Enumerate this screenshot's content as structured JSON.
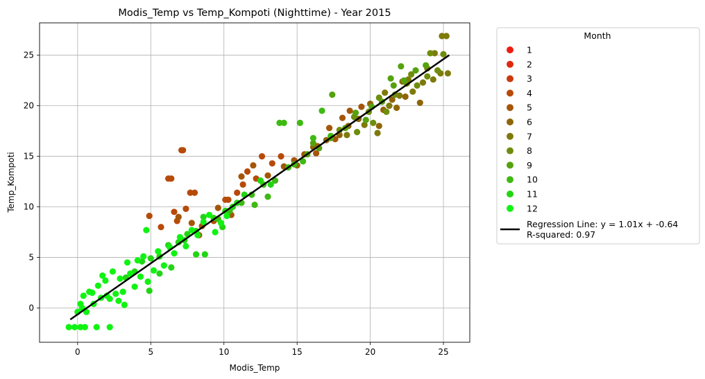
{
  "chart_data": {
    "type": "scatter",
    "title": "Modis_Temp vs Temp_Kompoti (Nighttime) - Year 2015",
    "xlabel": "Modis_Temp",
    "ylabel": "Temp_Kompoti",
    "xlim": [
      -2.6,
      26.8
    ],
    "ylim": [
      -3.4,
      28.2
    ],
    "xticks": [
      "0",
      "5",
      "10",
      "15",
      "20",
      "25"
    ],
    "xtick_values": [
      0,
      5,
      10,
      15,
      20,
      25
    ],
    "yticks": [
      "0",
      "5",
      "10",
      "15",
      "20",
      "25"
    ],
    "ytick_values": [
      0,
      5,
      10,
      15,
      20,
      25
    ],
    "grid": true,
    "legend": {
      "title": "Month",
      "placement": "outside-right",
      "entries": [
        "1",
        "2",
        "3",
        "4",
        "5",
        "6",
        "7",
        "8",
        "9",
        "10",
        "11",
        "12"
      ],
      "regression_line_label": "Regression Line: y = 1.01x + -0.64",
      "r_squared_label": "R-squared: 0.97"
    },
    "regression": {
      "slope": 1.01,
      "intercept": -0.64,
      "r_squared": 0.97,
      "x_range": [
        -0.5,
        25.4
      ]
    },
    "series": [
      {
        "name": "1",
        "color": "#ee1c12",
        "points": []
      },
      {
        "name": "2",
        "color": "#dd2a0e",
        "points": []
      },
      {
        "name": "3",
        "color": "#c9390b",
        "points": []
      },
      {
        "name": "4",
        "color": "#b74a09",
        "points": [
          [
            4.9,
            9.1
          ],
          [
            5.7,
            8.0
          ],
          [
            6.2,
            12.8
          ],
          [
            6.4,
            12.8
          ],
          [
            6.6,
            9.5
          ],
          [
            6.8,
            8.6
          ],
          [
            7.1,
            15.6
          ],
          [
            7.2,
            15.6
          ],
          [
            7.4,
            9.8
          ],
          [
            7.7,
            11.4
          ],
          [
            8.0,
            11.4
          ],
          [
            8.3,
            7.2
          ],
          [
            9.3,
            8.6
          ],
          [
            10.1,
            10.7
          ],
          [
            10.3,
            10.7
          ],
          [
            10.9,
            11.4
          ],
          [
            11.3,
            12.2
          ],
          [
            11.6,
            13.5
          ],
          [
            12.2,
            12.8
          ],
          [
            12.6,
            15.0
          ],
          [
            13.3,
            14.3
          ],
          [
            13.9,
            15.0
          ]
        ]
      },
      {
        "name": "5",
        "color": "#a45608",
        "points": [
          [
            6.9,
            9.0
          ],
          [
            7.8,
            8.4
          ],
          [
            8.5,
            8.1
          ],
          [
            9.6,
            9.9
          ],
          [
            10.5,
            9.2
          ],
          [
            11.2,
            13.0
          ],
          [
            12.0,
            14.1
          ],
          [
            13.0,
            13.1
          ],
          [
            14.1,
            14.0
          ],
          [
            14.8,
            14.6
          ],
          [
            15.5,
            15.2
          ],
          [
            16.4,
            16.0
          ],
          [
            17.2,
            17.8
          ],
          [
            18.1,
            18.8
          ],
          [
            18.6,
            19.5
          ],
          [
            19.4,
            19.9
          ],
          [
            16.3,
            15.3
          ],
          [
            17.6,
            16.7
          ]
        ]
      },
      {
        "name": "6",
        "color": "#8f6508",
        "points": [
          [
            15.0,
            14.1
          ],
          [
            16.1,
            15.9
          ],
          [
            17.0,
            16.6
          ],
          [
            17.9,
            17.1
          ],
          [
            18.5,
            18.0
          ],
          [
            19.2,
            18.7
          ],
          [
            20.0,
            20.2
          ],
          [
            20.9,
            19.6
          ],
          [
            21.5,
            20.6
          ],
          [
            22.4,
            20.9
          ],
          [
            23.4,
            20.3
          ],
          [
            22.2,
            22.4
          ],
          [
            20.6,
            18.0
          ],
          [
            21.8,
            19.8
          ]
        ]
      },
      {
        "name": "7",
        "color": "#7e7a0a",
        "points": [
          [
            18.4,
            17.1
          ],
          [
            19.6,
            18.1
          ],
          [
            20.5,
            17.3
          ],
          [
            21.3,
            20.0
          ],
          [
            22.0,
            21.0
          ],
          [
            22.9,
            21.4
          ],
          [
            23.6,
            22.3
          ],
          [
            24.3,
            22.6
          ],
          [
            24.8,
            23.2
          ],
          [
            25.3,
            23.2
          ],
          [
            24.9,
            26.9
          ],
          [
            25.2,
            26.9
          ],
          [
            24.4,
            25.2
          ],
          [
            23.9,
            23.7
          ],
          [
            22.6,
            22.6
          ],
          [
            21.0,
            21.3
          ]
        ]
      },
      {
        "name": "8",
        "color": "#6f8d0c",
        "points": [
          [
            17.9,
            17.6
          ],
          [
            18.9,
            18.9
          ],
          [
            19.9,
            19.4
          ],
          [
            20.6,
            20.8
          ],
          [
            21.7,
            21.1
          ],
          [
            22.5,
            22.2
          ],
          [
            23.2,
            22.0
          ],
          [
            23.9,
            22.9
          ],
          [
            24.6,
            23.5
          ],
          [
            25.0,
            25.1
          ],
          [
            24.1,
            25.2
          ],
          [
            22.8,
            23.1
          ],
          [
            21.1,
            19.4
          ],
          [
            20.2,
            18.3
          ],
          [
            19.1,
            17.4
          ]
        ]
      },
      {
        "name": "9",
        "color": "#55a20f",
        "points": [
          [
            15.7,
            15.2
          ],
          [
            16.5,
            15.8
          ],
          [
            17.4,
            21.1
          ],
          [
            17.3,
            16.8
          ],
          [
            18.3,
            17.8
          ],
          [
            19.0,
            19.3
          ],
          [
            20.1,
            19.9
          ],
          [
            20.8,
            20.4
          ],
          [
            21.6,
            22.0
          ],
          [
            22.3,
            22.5
          ],
          [
            23.1,
            23.5
          ],
          [
            23.8,
            24.0
          ],
          [
            22.1,
            23.9
          ],
          [
            21.4,
            22.7
          ],
          [
            19.7,
            18.6
          ],
          [
            16.1,
            16.3
          ]
        ]
      },
      {
        "name": "10",
        "color": "#3fb913",
        "points": [
          [
            9.6,
            8.8
          ],
          [
            10.4,
            9.6
          ],
          [
            11.2,
            10.4
          ],
          [
            11.9,
            11.2
          ],
          [
            12.7,
            12.2
          ],
          [
            13.5,
            12.6
          ],
          [
            13.8,
            18.3
          ],
          [
            14.1,
            18.3
          ],
          [
            14.4,
            13.9
          ],
          [
            15.2,
            18.3
          ],
          [
            15.4,
            14.5
          ],
          [
            16.1,
            16.8
          ],
          [
            16.7,
            19.5
          ],
          [
            17.3,
            17.0
          ],
          [
            12.1,
            10.2
          ],
          [
            13.0,
            11.0
          ],
          [
            14.8,
            14.2
          ]
        ]
      },
      {
        "name": "11",
        "color": "#22d514",
        "points": [
          [
            3.3,
            3.0
          ],
          [
            3.9,
            3.6
          ],
          [
            4.4,
            4.6
          ],
          [
            5.0,
            4.9
          ],
          [
            5.6,
            5.1
          ],
          [
            6.2,
            6.2
          ],
          [
            6.9,
            6.5
          ],
          [
            7.5,
            7.3
          ],
          [
            8.1,
            7.6
          ],
          [
            8.6,
            9.0
          ],
          [
            9.3,
            8.9
          ],
          [
            10.1,
            9.6
          ],
          [
            10.9,
            10.4
          ],
          [
            11.4,
            11.2
          ],
          [
            8.1,
            5.3
          ],
          [
            8.7,
            5.3
          ],
          [
            4.9,
            1.7
          ],
          [
            5.6,
            3.4
          ],
          [
            6.4,
            4.0
          ],
          [
            7.3,
            6.7
          ],
          [
            9.9,
            8.0
          ],
          [
            10.6,
            10.0
          ],
          [
            12.5,
            12.6
          ],
          [
            13.2,
            12.2
          ]
        ]
      },
      {
        "name": "12",
        "color": "#10f312",
        "points": [
          [
            -0.6,
            -1.9
          ],
          [
            -0.2,
            -1.9
          ],
          [
            0.2,
            -1.9
          ],
          [
            0.5,
            -1.9
          ],
          [
            1.3,
            -1.9
          ],
          [
            2.2,
            -1.9
          ],
          [
            0.0,
            -0.4
          ],
          [
            0.2,
            0.4
          ],
          [
            0.4,
            1.2
          ],
          [
            0.8,
            1.6
          ],
          [
            1.1,
            0.4
          ],
          [
            1.4,
            2.2
          ],
          [
            1.6,
            1.0
          ],
          [
            1.9,
            2.7
          ],
          [
            2.2,
            0.9
          ],
          [
            2.4,
            3.6
          ],
          [
            2.6,
            1.4
          ],
          [
            2.9,
            2.9
          ],
          [
            3.2,
            0.3
          ],
          [
            3.4,
            4.5
          ],
          [
            3.6,
            3.4
          ],
          [
            3.9,
            2.1
          ],
          [
            4.1,
            4.7
          ],
          [
            4.3,
            3.1
          ],
          [
            4.7,
            7.7
          ],
          [
            4.5,
            5.1
          ],
          [
            4.8,
            2.6
          ],
          [
            5.2,
            3.7
          ],
          [
            5.5,
            5.6
          ],
          [
            5.9,
            4.2
          ],
          [
            6.3,
            6.0
          ],
          [
            6.6,
            5.4
          ],
          [
            7.0,
            7.0
          ],
          [
            7.4,
            6.1
          ],
          [
            7.8,
            7.7
          ],
          [
            8.2,
            7.2
          ],
          [
            8.6,
            8.5
          ],
          [
            9.0,
            9.2
          ],
          [
            9.4,
            7.5
          ],
          [
            9.8,
            8.4
          ],
          [
            10.2,
            9.1
          ],
          [
            2.8,
            0.7
          ],
          [
            3.1,
            1.6
          ],
          [
            1.0,
            1.5
          ],
          [
            1.7,
            3.2
          ],
          [
            2.0,
            1.2
          ],
          [
            0.3,
            0.0
          ],
          [
            0.6,
            -0.4
          ]
        ]
      }
    ]
  }
}
